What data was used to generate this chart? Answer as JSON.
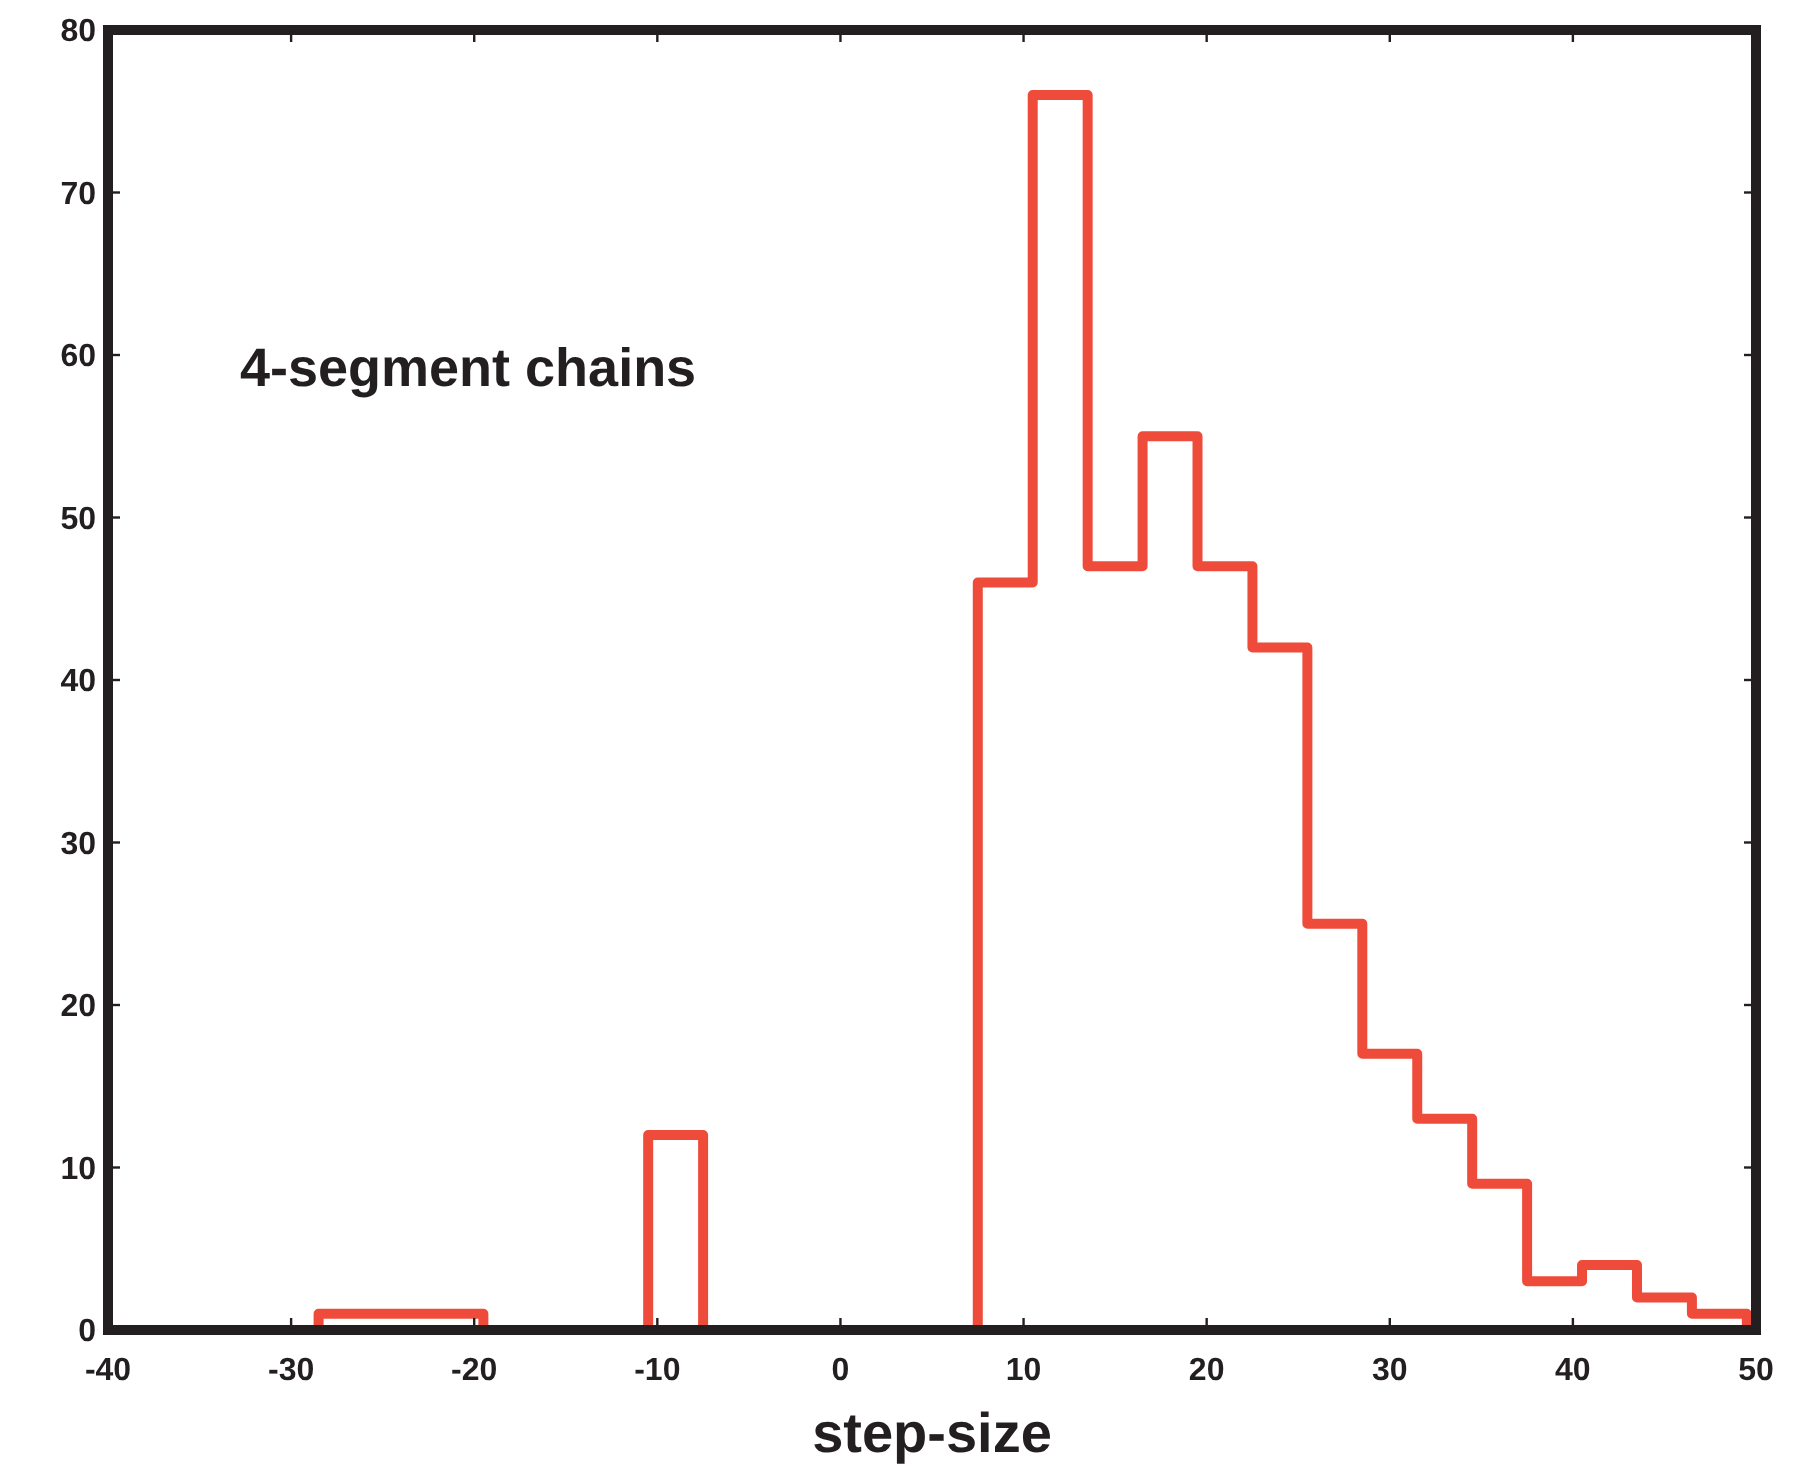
{
  "chart_data": {
    "type": "histogram",
    "xlabel": "step-size",
    "annotations": [
      "4-segment chains"
    ],
    "bins": [
      -28.5,
      -25.5,
      -22.5,
      -19.5,
      -16.5,
      -13.5,
      -10.5,
      -7.5,
      -4.5,
      -1.5,
      1.5,
      4.5,
      7.5,
      10.5,
      13.5,
      16.5,
      19.5,
      22.5,
      25.5,
      28.5,
      31.5,
      34.5,
      37.5,
      40.5,
      43.5,
      46.5,
      49.5
    ],
    "values": [
      1,
      1,
      1,
      0,
      0,
      0,
      12,
      0,
      0,
      0,
      0,
      0,
      46,
      76,
      47,
      55,
      47,
      42,
      25,
      17,
      13,
      9,
      3,
      4,
      2,
      1
    ],
    "color": "#ef4b3b",
    "xlim": [
      -40,
      50
    ],
    "ylim": [
      0,
      80
    ],
    "xticks": [
      -40,
      -30,
      -20,
      -10,
      0,
      10,
      20,
      30,
      40,
      50
    ],
    "yticks": [
      0,
      10,
      20,
      30,
      40,
      50,
      60,
      70,
      80
    ],
    "grid": false
  }
}
